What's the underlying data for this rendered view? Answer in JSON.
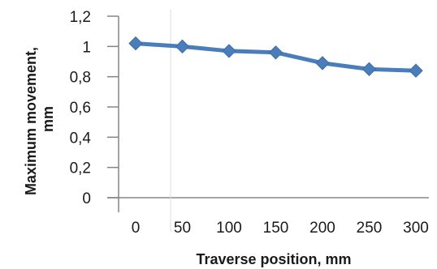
{
  "chart_data": {
    "type": "line",
    "title": "",
    "xlabel": "Traverse position, mm",
    "ylabel_lines": [
      "Maximum movement,",
      "mm"
    ],
    "categories": [
      "0",
      "50",
      "100",
      "150",
      "200",
      "250",
      "300"
    ],
    "series": [
      {
        "values": [
          1.02,
          1.0,
          0.97,
          0.96,
          0.89,
          0.85,
          0.84
        ]
      }
    ],
    "ylim": [
      0,
      1.2
    ],
    "yticks": [
      0,
      0.2,
      0.4,
      0.6,
      0.8,
      1,
      1.2
    ],
    "ytick_labels": [
      "0",
      "0,2",
      "0,4",
      "0,6",
      "0,8",
      "1",
      "1,2"
    ],
    "grid": false,
    "legend": "none",
    "colors": {
      "series": "#4a7ebb",
      "axis": "#858585",
      "text": "#1a1a1a"
    }
  }
}
